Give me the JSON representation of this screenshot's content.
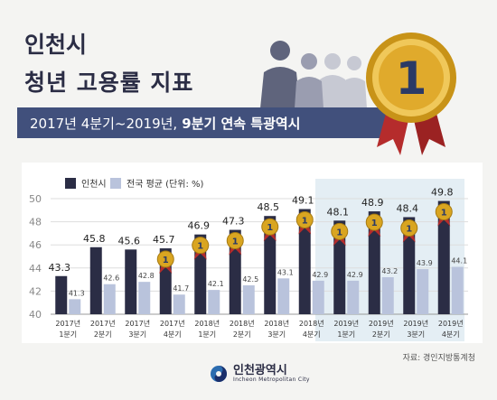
{
  "header": {
    "title_line1": "인천시",
    "title_line2": "청년 고용률 지표",
    "banner_normal": "2017년 4분기~2019년,",
    "banner_bold": "9분기 연속 특광역시",
    "medal_number": "1"
  },
  "legend": {
    "incheon": "인천시",
    "national": "전국 평균 (단위: %)"
  },
  "source": "자료: 경인지방통계청",
  "logo": {
    "korean": "인천광역시",
    "english": "Incheon Metropolitan City"
  },
  "colors": {
    "incheon": "#2b2d45",
    "national": "#b9c3dc",
    "banner": "#41507c",
    "highlight": "#e4eef4",
    "medal_gold": "#d9a521",
    "ribbon": "#b52c2c"
  },
  "chart_data": {
    "type": "bar",
    "categories": [
      [
        "2017년",
        "1분기"
      ],
      [
        "2017년",
        "2분기"
      ],
      [
        "2017년",
        "3분기"
      ],
      [
        "2017년",
        "4분기"
      ],
      [
        "2018년",
        "1분기"
      ],
      [
        "2018년",
        "2분기"
      ],
      [
        "2018년",
        "3분기"
      ],
      [
        "2018년",
        "4분기"
      ],
      [
        "2019년",
        "1분기"
      ],
      [
        "2019년",
        "2분기"
      ],
      [
        "2019년",
        "3분기"
      ],
      [
        "2019년",
        "4분기"
      ]
    ],
    "series": [
      {
        "name": "인천시",
        "values": [
          43.3,
          45.8,
          45.6,
          45.7,
          46.9,
          47.3,
          48.5,
          49.1,
          48.1,
          48.9,
          48.4,
          49.8
        ]
      },
      {
        "name": "전국 평균",
        "values": [
          41.3,
          42.6,
          42.8,
          41.7,
          42.1,
          42.5,
          43.1,
          42.9,
          42.9,
          43.2,
          43.9,
          44.1
        ]
      }
    ],
    "medals": [
      false,
      false,
      false,
      true,
      true,
      true,
      true,
      true,
      true,
      true,
      true,
      true
    ],
    "yticks": [
      40,
      42,
      44,
      46,
      48,
      50
    ],
    "ylim": [
      40,
      50
    ],
    "unit": "%"
  }
}
